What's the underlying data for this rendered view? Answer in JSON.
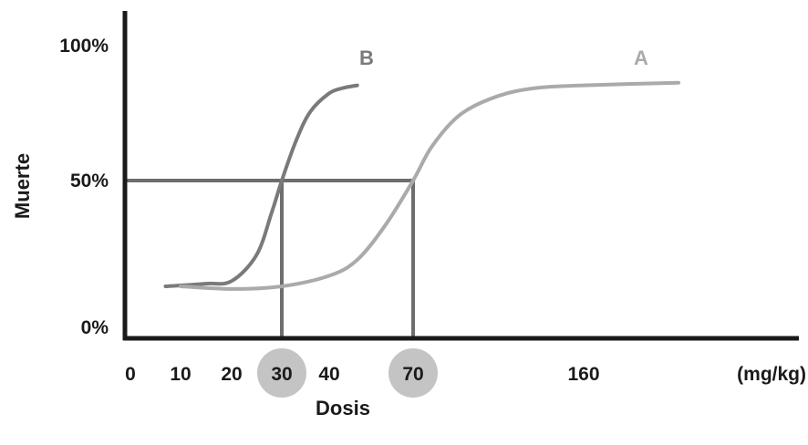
{
  "chart_data": {
    "type": "line",
    "xlabel": "Dosis",
    "ylabel": "Muerte",
    "x_unit": "(mg/kg)",
    "x_ticks": [
      "0",
      "10",
      "20",
      "30",
      "40",
      "70",
      "160"
    ],
    "y_ticks": [
      "0%",
      "50%",
      "100%"
    ],
    "highlighted_x": [
      "30",
      "70"
    ],
    "reference_y": 50,
    "series": [
      {
        "name": "B",
        "color": "#7a7a7a",
        "points": [
          [
            7,
            10
          ],
          [
            15,
            11
          ],
          [
            20,
            12
          ],
          [
            25,
            22
          ],
          [
            28,
            38
          ],
          [
            30,
            50
          ],
          [
            33,
            65
          ],
          [
            36,
            76
          ],
          [
            40,
            83
          ],
          [
            45,
            85
          ],
          [
            50,
            86
          ]
        ]
      },
      {
        "name": "A",
        "color": "#aaaaaa",
        "points": [
          [
            10,
            10
          ],
          [
            20,
            9
          ],
          [
            30,
            10
          ],
          [
            40,
            14
          ],
          [
            50,
            20
          ],
          [
            60,
            33
          ],
          [
            70,
            50
          ],
          [
            80,
            63
          ],
          [
            95,
            75
          ],
          [
            115,
            82
          ],
          [
            135,
            85
          ],
          [
            160,
            86
          ],
          [
            175,
            87
          ]
        ]
      }
    ],
    "colors": {
      "axis": "#1a1a1a",
      "reference_lines": "#6e6e6e",
      "highlight_circle": "#c4c4c4"
    }
  }
}
